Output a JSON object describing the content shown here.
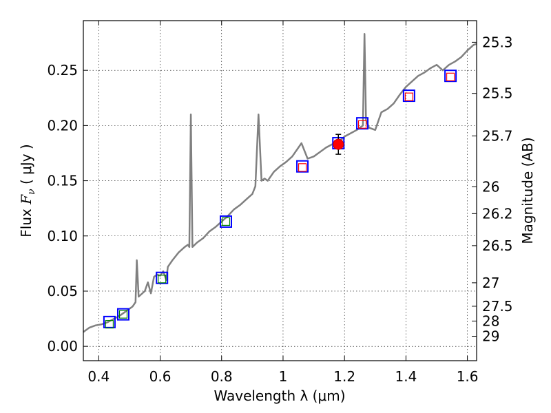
{
  "chart_data": {
    "type": "scatter",
    "xlabel": "Wavelength  λ (μm)",
    "ylabel_prefix": "Flux  ",
    "ylabel_var": "F",
    "ylabel_sub": "ν",
    "ylabel_suffix": "  ( μJy )",
    "y2label": "Magnitude (AB)",
    "xlim": [
      0.35,
      1.63
    ],
    "ylim": [
      -0.013,
      0.295
    ],
    "grid": true,
    "x_ticks": [
      {
        "value": 0.4,
        "label": "0.4"
      },
      {
        "value": 0.6,
        "label": "0.6"
      },
      {
        "value": 0.8,
        "label": "0.8"
      },
      {
        "value": 1.0,
        "label": "1"
      },
      {
        "value": 1.2,
        "label": "1.2"
      },
      {
        "value": 1.4,
        "label": "1.4"
      },
      {
        "value": 1.6,
        "label": "1.6"
      }
    ],
    "y_ticks": [
      {
        "value": 0.0,
        "label": "0.00"
      },
      {
        "value": 0.05,
        "label": "0.05"
      },
      {
        "value": 0.1,
        "label": "0.10"
      },
      {
        "value": 0.15,
        "label": "0.15"
      },
      {
        "value": 0.2,
        "label": "0.20"
      },
      {
        "value": 0.25,
        "label": "0.25"
      }
    ],
    "mag_ticks": [
      {
        "value": 25.3,
        "label": "25.3"
      },
      {
        "value": 25.5,
        "label": "25.5"
      },
      {
        "value": 25.7,
        "label": "25.7"
      },
      {
        "value": 26.0,
        "label": "26"
      },
      {
        "value": 26.2,
        "label": "26.2"
      },
      {
        "value": 26.5,
        "label": "26.5"
      },
      {
        "value": 27.0,
        "label": "27"
      },
      {
        "value": 27.5,
        "label": "27.5"
      },
      {
        "value": 28.0,
        "label": "28"
      },
      {
        "value": 29.0,
        "label": "29"
      }
    ],
    "series": [
      {
        "name": "model SED",
        "kind": "line",
        "color": "#808080",
        "points": [
          [
            0.35,
            0.013
          ],
          [
            0.37,
            0.017
          ],
          [
            0.39,
            0.019
          ],
          [
            0.41,
            0.02
          ],
          [
            0.43,
            0.022
          ],
          [
            0.45,
            0.025
          ],
          [
            0.47,
            0.028
          ],
          [
            0.49,
            0.032
          ],
          [
            0.51,
            0.036
          ],
          [
            0.52,
            0.04
          ],
          [
            0.524,
            0.078
          ],
          [
            0.53,
            0.045
          ],
          [
            0.55,
            0.05
          ],
          [
            0.56,
            0.058
          ],
          [
            0.57,
            0.048
          ],
          [
            0.58,
            0.063
          ],
          [
            0.59,
            0.065
          ],
          [
            0.6,
            0.064
          ],
          [
            0.61,
            0.068
          ],
          [
            0.62,
            0.06
          ],
          [
            0.625,
            0.072
          ],
          [
            0.64,
            0.078
          ],
          [
            0.66,
            0.085
          ],
          [
            0.68,
            0.09
          ],
          [
            0.69,
            0.092
          ],
          [
            0.695,
            0.09
          ],
          [
            0.7,
            0.21
          ],
          [
            0.705,
            0.09
          ],
          [
            0.72,
            0.094
          ],
          [
            0.74,
            0.098
          ],
          [
            0.76,
            0.104
          ],
          [
            0.78,
            0.108
          ],
          [
            0.8,
            0.113
          ],
          [
            0.82,
            0.118
          ],
          [
            0.84,
            0.124
          ],
          [
            0.86,
            0.128
          ],
          [
            0.88,
            0.133
          ],
          [
            0.9,
            0.138
          ],
          [
            0.91,
            0.145
          ],
          [
            0.92,
            0.21
          ],
          [
            0.93,
            0.15
          ],
          [
            0.94,
            0.152
          ],
          [
            0.95,
            0.15
          ],
          [
            0.97,
            0.158
          ],
          [
            0.99,
            0.163
          ],
          [
            1.01,
            0.167
          ],
          [
            1.03,
            0.172
          ],
          [
            1.05,
            0.18
          ],
          [
            1.06,
            0.184
          ],
          [
            1.08,
            0.17
          ],
          [
            1.1,
            0.172
          ],
          [
            1.12,
            0.176
          ],
          [
            1.14,
            0.18
          ],
          [
            1.16,
            0.183
          ],
          [
            1.18,
            0.185
          ],
          [
            1.2,
            0.19
          ],
          [
            1.22,
            0.193
          ],
          [
            1.24,
            0.196
          ],
          [
            1.26,
            0.2
          ],
          [
            1.265,
            0.283
          ],
          [
            1.27,
            0.205
          ],
          [
            1.28,
            0.198
          ],
          [
            1.3,
            0.196
          ],
          [
            1.32,
            0.212
          ],
          [
            1.34,
            0.215
          ],
          [
            1.36,
            0.22
          ],
          [
            1.38,
            0.228
          ],
          [
            1.4,
            0.235
          ],
          [
            1.42,
            0.24
          ],
          [
            1.44,
            0.245
          ],
          [
            1.46,
            0.248
          ],
          [
            1.48,
            0.252
          ],
          [
            1.5,
            0.255
          ],
          [
            1.52,
            0.25
          ],
          [
            1.54,
            0.255
          ],
          [
            1.56,
            0.258
          ],
          [
            1.58,
            0.262
          ],
          [
            1.6,
            0.268
          ],
          [
            1.62,
            0.273
          ],
          [
            1.63,
            0.274
          ]
        ]
      },
      {
        "name": "observed points (blue squares)",
        "kind": "marker",
        "color": "#0000ff",
        "points": [
          [
            0.435,
            0.022
          ],
          [
            0.48,
            0.029
          ],
          [
            0.606,
            0.062
          ],
          [
            0.814,
            0.113
          ],
          [
            1.063,
            0.163
          ],
          [
            1.18,
            0.184
          ],
          [
            1.258,
            0.202
          ],
          [
            1.41,
            0.227
          ],
          [
            1.545,
            0.245
          ]
        ]
      },
      {
        "name": "model points optical (green squares)",
        "kind": "marker",
        "color": "#008000",
        "points": [
          [
            0.435,
            0.02
          ],
          [
            0.48,
            0.029
          ],
          [
            0.606,
            0.061
          ],
          [
            0.814,
            0.113
          ]
        ]
      },
      {
        "name": "model points infrared (red squares)",
        "kind": "marker",
        "color": "#ff0000",
        "points": [
          [
            1.063,
            0.162
          ],
          [
            1.18,
            0.183
          ],
          [
            1.258,
            0.201
          ],
          [
            1.41,
            0.226
          ],
          [
            1.545,
            0.244
          ]
        ]
      },
      {
        "name": "measurement with error bar (red dot)",
        "kind": "errorbar",
        "color": "#ff0000",
        "points": [
          {
            "x": 1.18,
            "y": 0.183,
            "yerr": 0.009
          }
        ]
      }
    ]
  }
}
